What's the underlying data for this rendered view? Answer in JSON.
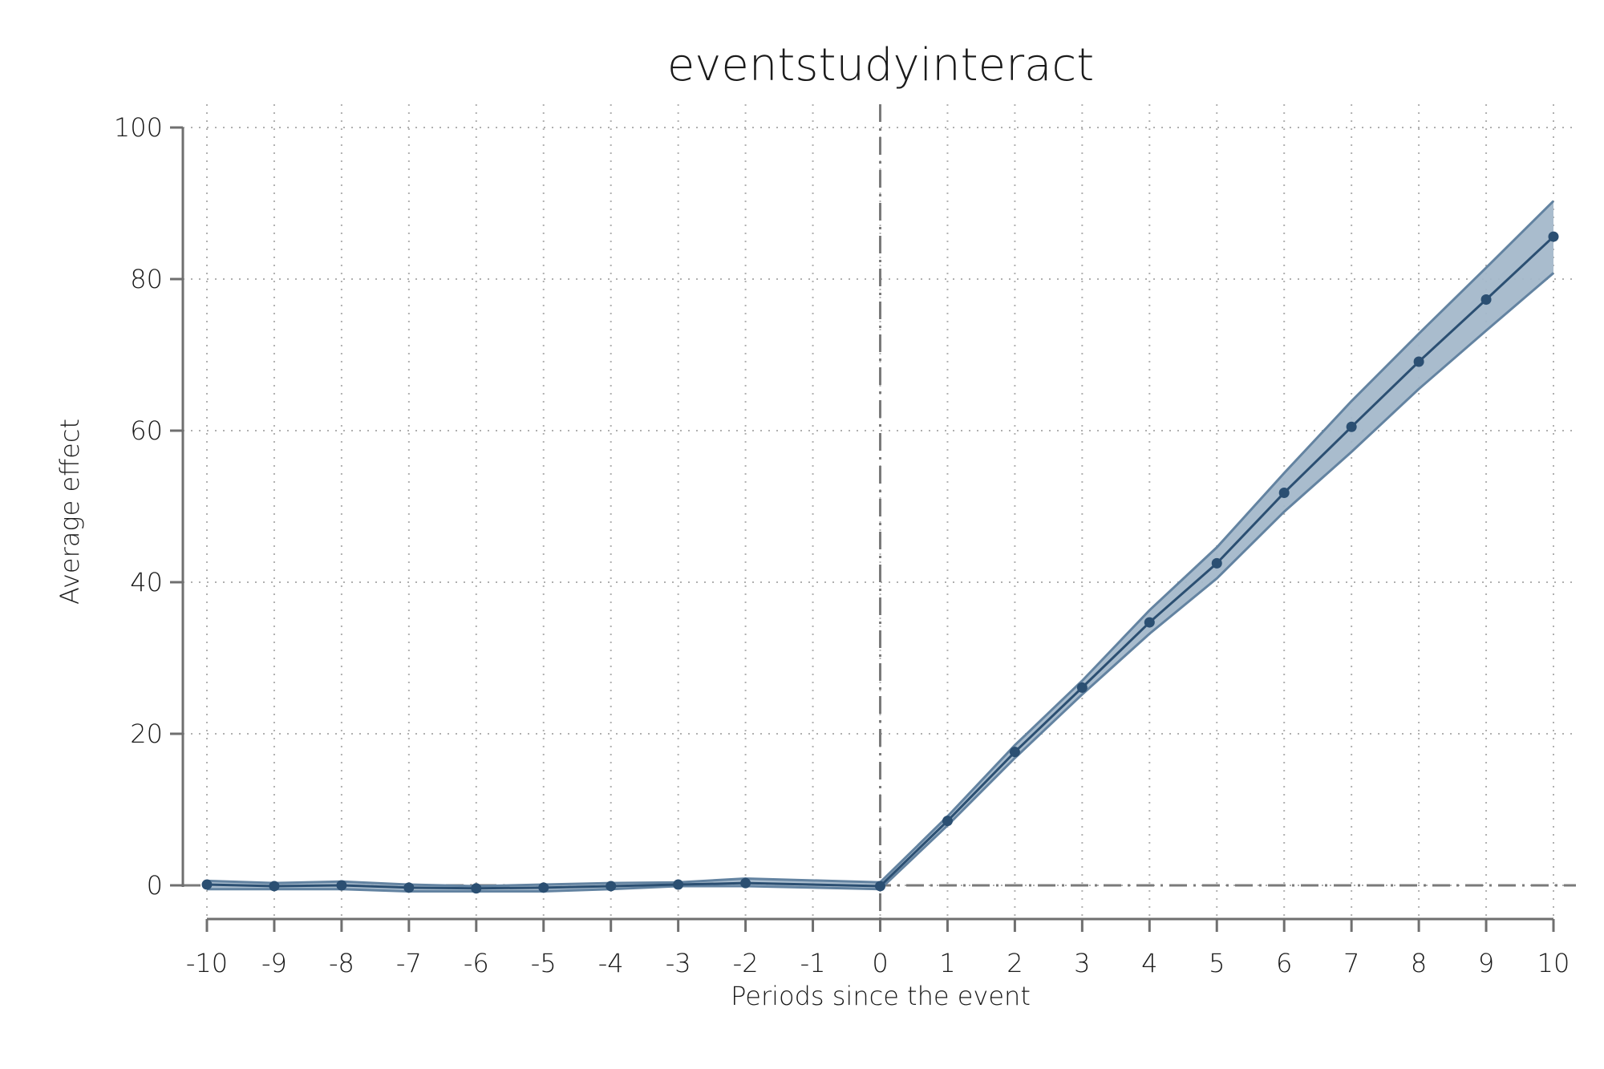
{
  "chart_data": {
    "type": "line",
    "title": "eventstudyinteract",
    "xlabel": "Periods since the event",
    "ylabel": "Average effect",
    "x": [
      -10,
      -9,
      -8,
      -7,
      -6,
      -5,
      -4,
      -3,
      -2,
      -1,
      0,
      1,
      2,
      3,
      4,
      5,
      6,
      7,
      8,
      9,
      10
    ],
    "x_tick_labels": [
      "-10",
      "-9",
      "-8",
      "-7",
      "-6",
      "-5",
      "-4",
      "-3",
      "-2",
      "-1",
      "0",
      "1",
      "2",
      "3",
      "4",
      "5",
      "6",
      "7",
      "8",
      "9",
      "10"
    ],
    "y_ticks": [
      0,
      20,
      40,
      60,
      80,
      100
    ],
    "y_tick_labels": [
      "0",
      "20",
      "40",
      "60",
      "80",
      "100"
    ],
    "xlim": [
      -10,
      10
    ],
    "ylim": [
      -4.5,
      103
    ],
    "grid": true,
    "reference_lines": {
      "x": 0,
      "y": 0
    },
    "series": [
      {
        "x": [
          -10,
          -9,
          -8,
          -7,
          -6,
          -5,
          -4,
          -3,
          -2,
          0,
          1,
          2,
          3,
          4,
          5,
          6,
          7,
          8,
          9,
          10
        ],
        "values": [
          0.1,
          -0.1,
          0.0,
          -0.3,
          -0.4,
          -0.3,
          -0.1,
          0.1,
          0.3,
          -0.1,
          8.5,
          17.6,
          26.1,
          34.7,
          42.5,
          51.8,
          60.5,
          69.1,
          77.3,
          85.6
        ],
        "ci_lower": [
          -0.5,
          -0.5,
          -0.5,
          -0.8,
          -0.8,
          -0.8,
          -0.5,
          -0.1,
          -0.1,
          -0.5,
          7.9,
          16.8,
          25.2,
          33.2,
          40.5,
          49.3,
          57.2,
          65.5,
          73.2,
          80.8
        ],
        "ci_upper": [
          0.6,
          0.3,
          0.5,
          0.1,
          -0.1,
          0.1,
          0.3,
          0.4,
          0.9,
          0.4,
          9.1,
          18.5,
          27.0,
          36.3,
          44.6,
          54.4,
          63.9,
          72.8,
          81.5,
          90.3
        ]
      }
    ],
    "colors": {
      "line": "#2b4f72",
      "band_fill": "#a4b8ca",
      "band_edge": "#6383a1",
      "axis": "#6f6f6f",
      "grid": "#b0b0b0",
      "reference": "#7a7a7a"
    }
  }
}
